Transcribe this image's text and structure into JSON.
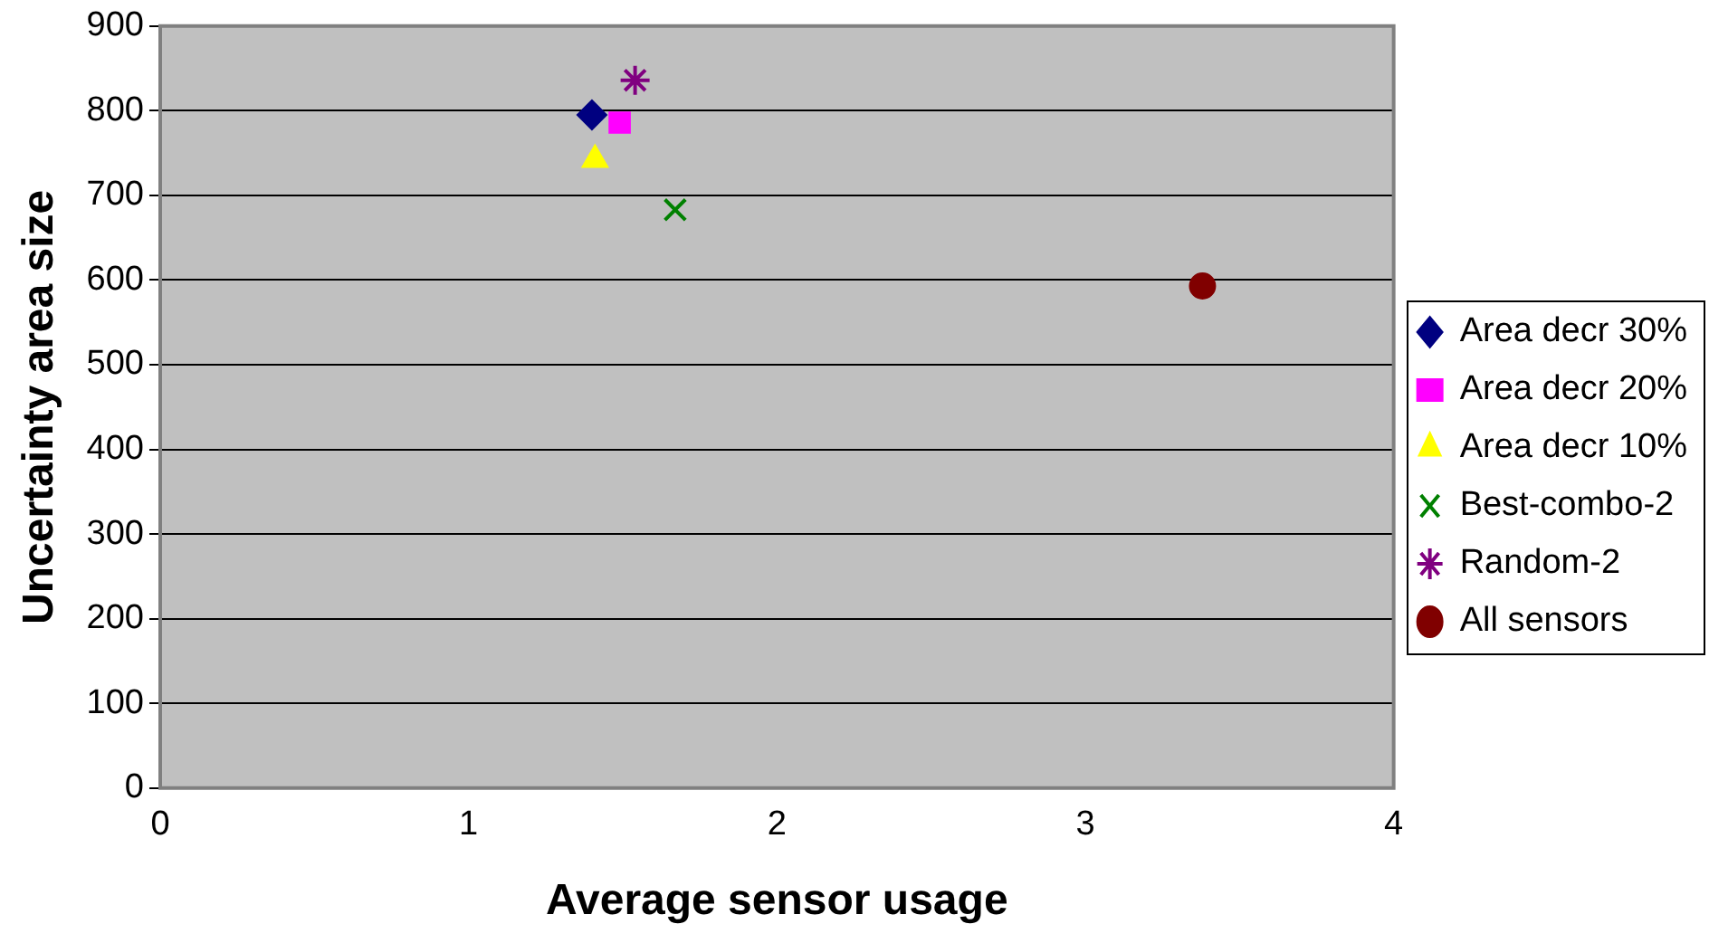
{
  "chart_data": {
    "type": "scatter",
    "xlabel": "Average sensor usage",
    "ylabel": "Uncertainty area size",
    "xlim": [
      0,
      4
    ],
    "xticks": [
      0,
      1,
      2,
      3,
      4
    ],
    "ylim": [
      0,
      900
    ],
    "yticks": [
      0,
      100,
      200,
      300,
      400,
      500,
      600,
      700,
      800,
      900
    ],
    "grid": "y",
    "legend": "right",
    "series": [
      {
        "name": "Area decr 30%",
        "color": "#000080",
        "marker": "diamond",
        "x": [
          1.4
        ],
        "values": [
          795
        ]
      },
      {
        "name": "Area decr 20%",
        "color": "#ff00ff",
        "marker": "square",
        "x": [
          1.49
        ],
        "values": [
          786
        ]
      },
      {
        "name": "Area decr 10%",
        "color": "#ffff00",
        "marker": "triangle",
        "x": [
          1.41
        ],
        "values": [
          742
        ]
      },
      {
        "name": "Best-combo-2",
        "color": "#008000",
        "marker": "cross",
        "x": [
          1.67
        ],
        "values": [
          683
        ]
      },
      {
        "name": "Random-2",
        "color": "#800080",
        "x": [
          1.54
        ],
        "values": [
          836
        ]
      },
      {
        "name": "All sensors",
        "color": "#800000",
        "marker": "circle",
        "x": [
          3.38
        ],
        "values": [
          593
        ]
      }
    ]
  }
}
